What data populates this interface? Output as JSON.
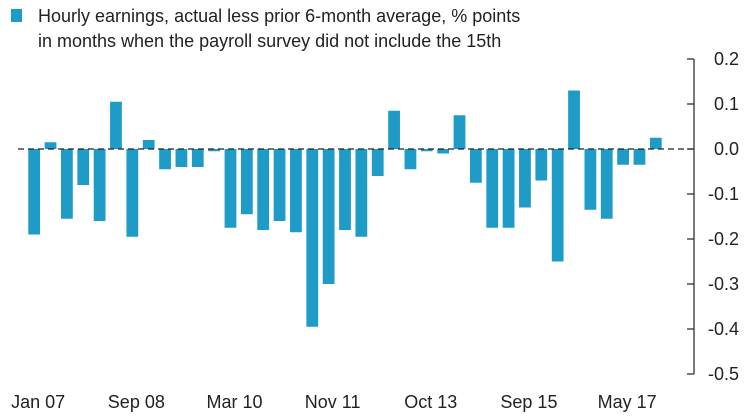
{
  "chart_data": {
    "type": "bar",
    "title": "",
    "legend": {
      "position": "top-left",
      "lines": [
        "Hourly earnings, actual less prior 6-month average, % points",
        "in months when the payroll survey did not include the 15th"
      ]
    },
    "xlabel": "",
    "ylabel": "",
    "y_axis_side": "right",
    "ylim": [
      -0.5,
      0.2
    ],
    "yticks": [
      0.2,
      0.1,
      0.0,
      -0.1,
      -0.2,
      -0.3,
      -0.4,
      -0.5
    ],
    "ytick_labels": [
      "0.2",
      "0.1",
      "0.0",
      "-0.1",
      "-0.2",
      "-0.3",
      "-0.4",
      "-0.5"
    ],
    "xtick_labels": [
      {
        "label": "Jan 07",
        "bar_index": 0
      },
      {
        "label": "Sep 08",
        "bar_index": 6
      },
      {
        "label": "Mar 10",
        "bar_index": 12
      },
      {
        "label": "Nov 11",
        "bar_index": 18
      },
      {
        "label": "Oct 13",
        "bar_index": 24
      },
      {
        "label": "Sep 15",
        "bar_index": 30
      },
      {
        "label": "May 17",
        "bar_index": 36
      }
    ],
    "gridlines": false,
    "bar_color": "#1f9bc8",
    "series": [
      {
        "name": "Hourly earnings, actual less prior 6-month average, % points",
        "values": [
          -0.19,
          0.015,
          -0.155,
          -0.08,
          -0.16,
          0.105,
          -0.195,
          0.02,
          -0.045,
          -0.04,
          -0.04,
          -0.005,
          -0.175,
          -0.145,
          -0.18,
          -0.16,
          -0.185,
          -0.395,
          -0.3,
          -0.18,
          -0.195,
          -0.06,
          0.085,
          -0.045,
          -0.005,
          -0.01,
          0.075,
          -0.075,
          -0.175,
          -0.175,
          -0.13,
          -0.07,
          -0.25,
          0.13,
          -0.135,
          -0.155,
          -0.035,
          -0.035,
          0.025
        ]
      }
    ]
  }
}
